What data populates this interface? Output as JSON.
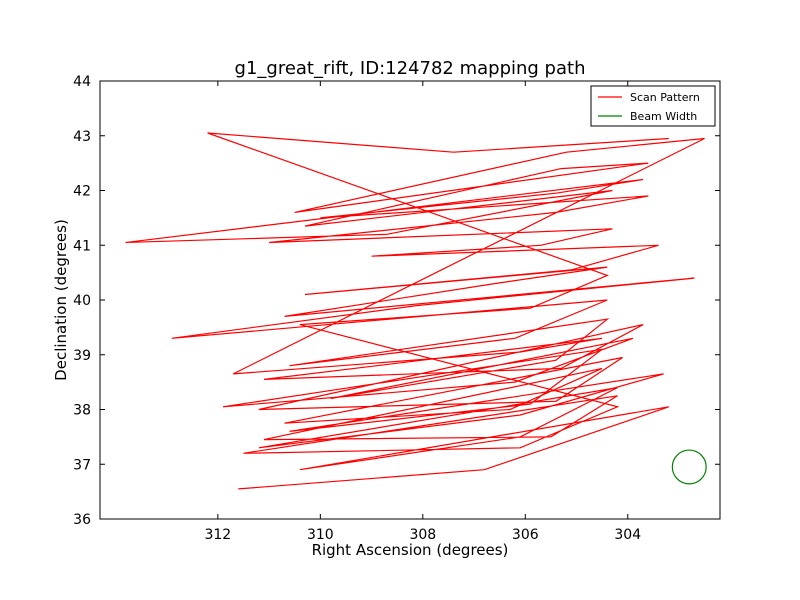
{
  "chart_data": {
    "type": "line",
    "title": "g1_great_rift, ID:124782 mapping path",
    "xlabel": "Right Ascension (degrees)",
    "ylabel": "Declination (degrees)",
    "xlim": [
      314.3,
      302.2
    ],
    "ylim": [
      36,
      44
    ],
    "x_ticks": [
      312,
      310,
      308,
      306,
      304
    ],
    "y_ticks": [
      36,
      37,
      38,
      39,
      40,
      41,
      42,
      43,
      44
    ],
    "x_tick_labels": [
      "312",
      "310",
      "308",
      "306",
      "304"
    ],
    "y_tick_labels": [
      "36",
      "37",
      "38",
      "39",
      "40",
      "41",
      "42",
      "43",
      "44"
    ],
    "grid": false,
    "legend_position": "top-right",
    "series": [
      {
        "name": "Scan Pattern",
        "color": "#ff0000",
        "x": [
          311.6,
          306.8,
          303.2,
          310.4,
          306.1,
          304.2,
          311.2,
          306.1,
          303.3,
          310.6,
          305.9,
          304.5,
          311.9,
          306.2,
          303.9,
          309.8,
          305.4,
          304.4,
          310.6,
          306.2,
          304.4,
          312.9,
          308.1,
          302.7,
          310.7,
          306.6,
          304.4,
          310.3,
          305.1,
          303.4,
          309.0,
          305.7,
          304.3,
          311.0,
          305.4,
          303.6,
          310.0,
          305.4,
          303.7,
          313.8,
          308.7,
          304.3,
          310.3,
          305.3,
          303.6,
          310.5,
          305.2,
          302.5,
          311.7,
          306.1,
          304.5,
          311.1,
          305.3,
          303.7,
          311.2,
          305.4,
          304.1,
          310.7,
          306.3,
          304.5,
          311.1,
          305.5,
          304.2,
          311.5,
          306.1,
          304.2,
          310.4,
          305.9,
          304.4,
          312.2,
          307.4,
          303.2
        ],
        "y": [
          36.55,
          36.9,
          38.05,
          36.9,
          37.5,
          38.4,
          37.3,
          37.9,
          38.65,
          37.6,
          38.1,
          39.1,
          38.05,
          38.5,
          39.3,
          38.2,
          38.9,
          39.65,
          38.8,
          39.3,
          40.0,
          39.3,
          39.9,
          40.4,
          39.7,
          40.3,
          40.6,
          40.1,
          40.55,
          41.0,
          40.8,
          41.0,
          41.3,
          41.05,
          41.6,
          41.9,
          41.5,
          41.95,
          42.2,
          41.05,
          41.2,
          42.0,
          41.35,
          42.4,
          42.5,
          41.6,
          42.7,
          42.95,
          38.65,
          39.05,
          39.3,
          38.55,
          38.75,
          39.55,
          38.0,
          38.15,
          38.95,
          37.75,
          38.0,
          38.75,
          37.45,
          37.5,
          38.25,
          37.2,
          37.3,
          38.05,
          39.55,
          39.85,
          40.45,
          43.05,
          42.7,
          42.95
        ]
      },
      {
        "name": "Beam Width",
        "color": "#008000",
        "center": [
          302.8,
          36.95
        ],
        "radius_deg": 0.33
      }
    ]
  }
}
